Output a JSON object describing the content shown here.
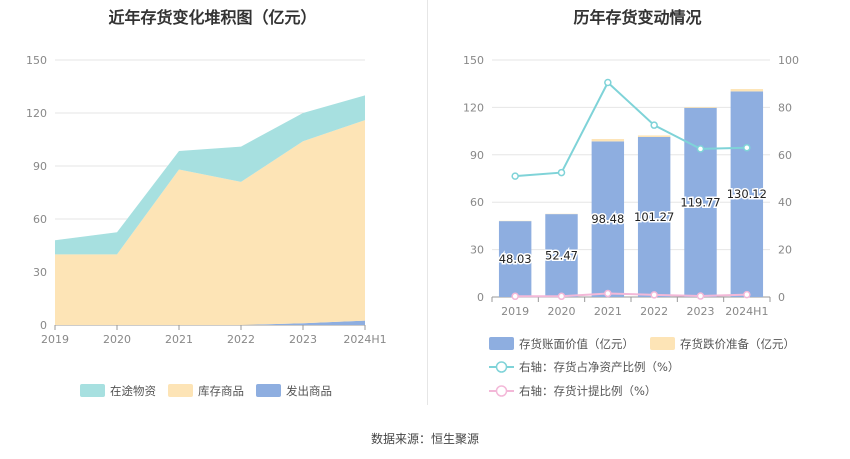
{
  "source_label": "数据来源：恒生聚源",
  "chart_data": [
    {
      "type": "area",
      "title": "近年存货变化堆积图（亿元）",
      "stacked": true,
      "categories": [
        "2019",
        "2020",
        "2021",
        "2022",
        "2023",
        "2024H1"
      ],
      "y_ticks": [
        "0",
        "30",
        "60",
        "90",
        "120",
        "150"
      ],
      "ylim": [
        0,
        150
      ],
      "grid": true,
      "legend_position": "bottom",
      "series": [
        {
          "name": "发出商品",
          "color": "#8eaee0",
          "values": [
            0,
            0,
            0,
            0,
            1,
            2.5
          ]
        },
        {
          "name": "库存商品",
          "color": "#fde4b6",
          "values": [
            40,
            40,
            88,
            81,
            103,
            113.5
          ]
        },
        {
          "name": "在途物资",
          "color": "#a7e0e0",
          "values": [
            8,
            12.5,
            10.5,
            20,
            16,
            14
          ]
        }
      ],
      "legend_order": [
        2,
        1,
        0
      ]
    },
    {
      "type": "bar",
      "title": "历年存货变动情况",
      "categories": [
        "2019",
        "2020",
        "2021",
        "2022",
        "2023",
        "2024H1"
      ],
      "y_ticks": [
        "0",
        "30",
        "60",
        "90",
        "120",
        "150"
      ],
      "ylim": [
        0,
        150
      ],
      "y2_ticks": [
        "0",
        "20",
        "40",
        "60",
        "80",
        "100"
      ],
      "y2lim": [
        0,
        100
      ],
      "grid": true,
      "legend_position": "bottom",
      "bar_series": [
        {
          "name": "存货账面价值（亿元）",
          "color": "#8eaee0",
          "values": [
            48.03,
            52.47,
            98.48,
            101.27,
            119.77,
            130.12
          ],
          "labels": [
            "48.03",
            "52.47",
            "98.48",
            "101.27",
            "119.77",
            "130.12"
          ]
        },
        {
          "name": "存货跌价准备（亿元）",
          "color": "#fde4b6",
          "values": [
            0.2,
            0.2,
            1.5,
            1.0,
            0.5,
            1.5
          ]
        }
      ],
      "line_series": [
        {
          "name": "右轴：存货占净资产比例（%）",
          "color": "#7fd3d8",
          "values": [
            51,
            52.5,
            90.5,
            72.5,
            62.5,
            63
          ]
        },
        {
          "name": "右轴：存货计提比例（%）",
          "color": "#f3b8d8",
          "values": [
            0.3,
            0.3,
            1.5,
            0.9,
            0.4,
            1.0
          ]
        }
      ]
    }
  ]
}
